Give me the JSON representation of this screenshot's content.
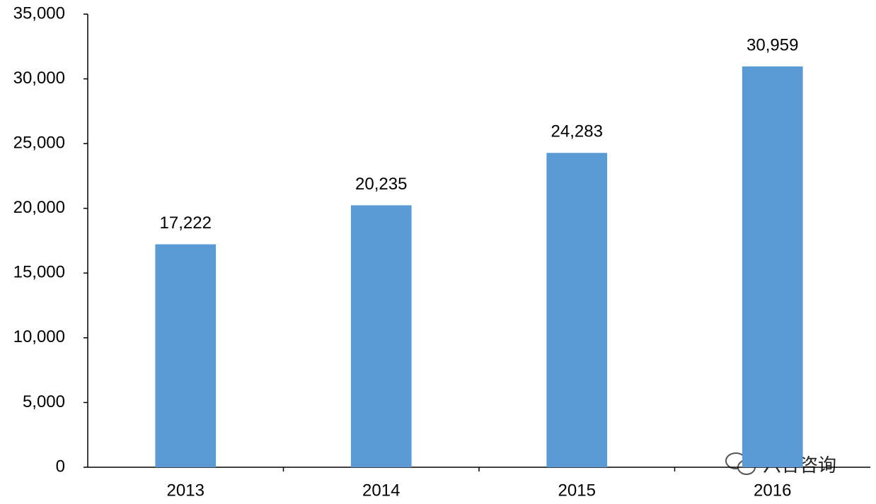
{
  "chart_data": {
    "type": "bar",
    "categories": [
      "2013",
      "2014",
      "2015",
      "2016"
    ],
    "values": [
      17222,
      20235,
      24283,
      30959
    ],
    "value_labels": [
      "17,222",
      "20,235",
      "24,283",
      "30,959"
    ],
    "color": "#5b9bd5",
    "ylim": [
      0,
      35000
    ],
    "yticks": [
      0,
      {
        "value": 5000,
        "label": "5,000"
      },
      {
        "value": 10000,
        "label": "10,000"
      },
      {
        "value": 15000,
        "label": "15,000"
      },
      {
        "value": 20000,
        "label": "20,000"
      },
      {
        "value": 25000,
        "label": "25,000"
      },
      {
        "value": 30000,
        "label": "30,000"
      },
      {
        "value": 35000,
        "label": "35,000"
      }
    ],
    "grid": false,
    "watermark": "六合咨询"
  }
}
